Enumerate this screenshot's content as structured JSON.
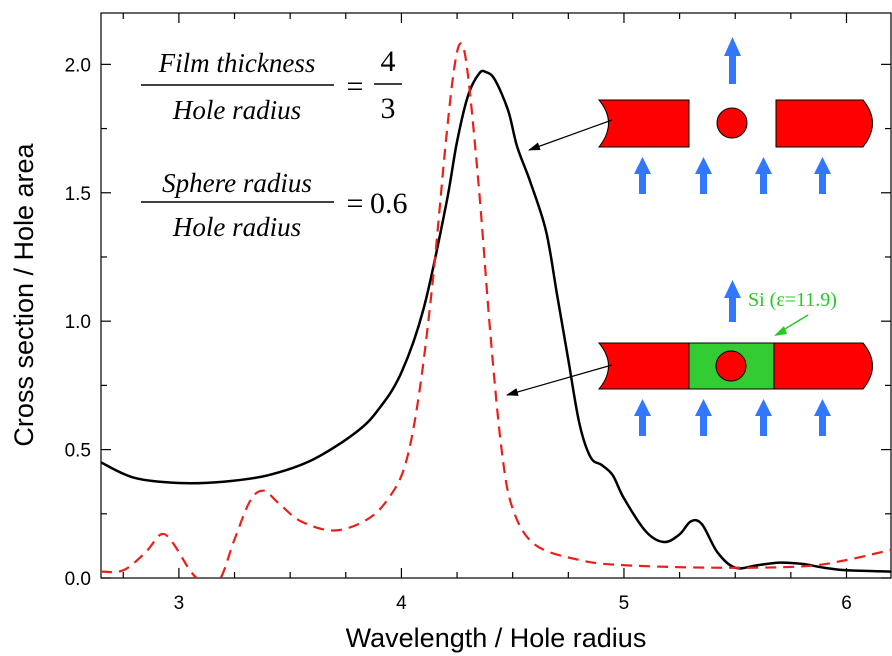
{
  "chart_data": {
    "type": "line",
    "xlabel": "Wavelength / Hole radius",
    "ylabel": "Cross section / Hole area",
    "xlim": [
      2.65,
      6.2
    ],
    "ylim": [
      0,
      2.2
    ],
    "xticks": [
      3,
      4,
      5,
      6
    ],
    "yticks": [
      0.0,
      0.5,
      1.0,
      1.5,
      2.0
    ],
    "xtick_labels": [
      "3",
      "4",
      "5",
      "6"
    ],
    "ytick_labels": [
      "0.0",
      "0.5",
      "1.0",
      "1.5",
      "2.0"
    ],
    "grid": false,
    "series": [
      {
        "style": "solid",
        "color": "#000000",
        "points": [
          [
            2.65,
            0.45
          ],
          [
            2.8,
            0.39
          ],
          [
            3.0,
            0.37
          ],
          [
            3.2,
            0.375
          ],
          [
            3.4,
            0.4
          ],
          [
            3.6,
            0.46
          ],
          [
            3.8,
            0.57
          ],
          [
            3.9,
            0.66
          ],
          [
            4.0,
            0.8
          ],
          [
            4.1,
            1.05
          ],
          [
            4.2,
            1.45
          ],
          [
            4.25,
            1.7
          ],
          [
            4.3,
            1.88
          ],
          [
            4.35,
            1.965
          ],
          [
            4.38,
            1.97
          ],
          [
            4.42,
            1.94
          ],
          [
            4.48,
            1.82
          ],
          [
            4.52,
            1.68
          ],
          [
            4.58,
            1.54
          ],
          [
            4.65,
            1.35
          ],
          [
            4.7,
            1.1
          ],
          [
            4.75,
            0.85
          ],
          [
            4.8,
            0.6
          ],
          [
            4.85,
            0.47
          ],
          [
            4.9,
            0.44
          ],
          [
            4.95,
            0.4
          ],
          [
            5.0,
            0.31
          ],
          [
            5.1,
            0.18
          ],
          [
            5.18,
            0.14
          ],
          [
            5.25,
            0.17
          ],
          [
            5.3,
            0.22
          ],
          [
            5.35,
            0.21
          ],
          [
            5.42,
            0.1
          ],
          [
            5.5,
            0.04
          ],
          [
            5.6,
            0.05
          ],
          [
            5.7,
            0.06
          ],
          [
            5.8,
            0.055
          ],
          [
            5.9,
            0.04
          ],
          [
            6.0,
            0.03
          ],
          [
            6.2,
            0.025
          ]
        ]
      },
      {
        "style": "dashed",
        "color": "#e8201a",
        "points": [
          [
            2.65,
            0.025
          ],
          [
            2.75,
            0.03
          ],
          [
            2.85,
            0.1
          ],
          [
            2.92,
            0.17
          ],
          [
            2.97,
            0.14
          ],
          [
            3.05,
            0.03
          ],
          [
            3.1,
            -0.01
          ],
          [
            3.18,
            -0.01
          ],
          [
            3.25,
            0.15
          ],
          [
            3.32,
            0.3
          ],
          [
            3.38,
            0.34
          ],
          [
            3.45,
            0.29
          ],
          [
            3.55,
            0.22
          ],
          [
            3.7,
            0.185
          ],
          [
            3.85,
            0.23
          ],
          [
            3.95,
            0.32
          ],
          [
            4.02,
            0.45
          ],
          [
            4.08,
            0.72
          ],
          [
            4.14,
            1.15
          ],
          [
            4.2,
            1.7
          ],
          [
            4.24,
            2.0
          ],
          [
            4.27,
            2.08
          ],
          [
            4.3,
            1.95
          ],
          [
            4.35,
            1.5
          ],
          [
            4.4,
            0.95
          ],
          [
            4.45,
            0.5
          ],
          [
            4.5,
            0.27
          ],
          [
            4.6,
            0.13
          ],
          [
            4.8,
            0.07
          ],
          [
            5.0,
            0.05
          ],
          [
            5.4,
            0.04
          ],
          [
            5.8,
            0.045
          ],
          [
            6.0,
            0.07
          ],
          [
            6.2,
            0.11
          ]
        ]
      }
    ]
  },
  "equations": {
    "eq1": {
      "numerator": "Film thickness",
      "denominator": "Hole radius",
      "equals": "=",
      "value_num": "4",
      "value_den": "3"
    },
    "eq2": {
      "numerator": "Sphere radius",
      "denominator": "Hole radius",
      "equals": "=",
      "value": "0.6"
    }
  },
  "inset_label": "Si (ε=11.9)",
  "colors": {
    "film": "#ff0000",
    "silicon": "#33cc33",
    "arrow": "#3377ff"
  }
}
